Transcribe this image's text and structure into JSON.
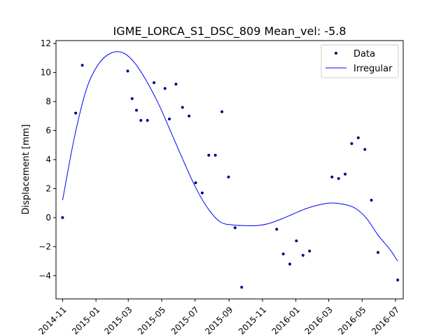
{
  "chart_data": {
    "type": "scatter",
    "title": "IGME_LORCA_S1_DSC_809    Mean_vel: -5.8",
    "xlabel": "",
    "ylabel": "Displacement [mm]",
    "xlim": [
      "2014-10-20",
      "2016-07-15"
    ],
    "ylim": [
      -5.6,
      12.2
    ],
    "grid": false,
    "legend_position": "top-right",
    "x_ticks": [
      "2014-11",
      "2015-01",
      "2015-03",
      "2015-05",
      "2015-07",
      "2015-09",
      "2015-11",
      "2016-01",
      "2016-03",
      "2016-05",
      "2016-07"
    ],
    "y_ticks": [
      -4,
      -2,
      0,
      2,
      4,
      6,
      8,
      10,
      12
    ],
    "series": [
      {
        "name": "Data",
        "kind": "points",
        "color": "#00007f",
        "points": [
          {
            "x": "2014-11-01",
            "y": 0.0
          },
          {
            "x": "2014-11-25",
            "y": 7.2
          },
          {
            "x": "2014-12-07",
            "y": 10.5
          },
          {
            "x": "2015-02-28",
            "y": 10.1
          },
          {
            "x": "2015-03-08",
            "y": 8.2
          },
          {
            "x": "2015-03-16",
            "y": 7.4
          },
          {
            "x": "2015-03-24",
            "y": 6.7
          },
          {
            "x": "2015-04-05",
            "y": 6.7
          },
          {
            "x": "2015-04-17",
            "y": 9.3
          },
          {
            "x": "2015-05-07",
            "y": 8.9
          },
          {
            "x": "2015-05-15",
            "y": 6.8
          },
          {
            "x": "2015-05-27",
            "y": 9.2
          },
          {
            "x": "2015-06-08",
            "y": 7.6
          },
          {
            "x": "2015-06-20",
            "y": 7.0
          },
          {
            "x": "2015-07-02",
            "y": 2.4
          },
          {
            "x": "2015-07-14",
            "y": 1.7
          },
          {
            "x": "2015-07-26",
            "y": 4.3
          },
          {
            "x": "2015-08-07",
            "y": 4.3
          },
          {
            "x": "2015-08-19",
            "y": 7.3
          },
          {
            "x": "2015-08-31",
            "y": 2.8
          },
          {
            "x": "2015-09-12",
            "y": -0.7
          },
          {
            "x": "2015-09-24",
            "y": -4.8
          },
          {
            "x": "2015-11-27",
            "y": -0.8
          },
          {
            "x": "2015-12-09",
            "y": -2.5
          },
          {
            "x": "2015-12-21",
            "y": -3.2
          },
          {
            "x": "2016-01-02",
            "y": -1.6
          },
          {
            "x": "2016-01-14",
            "y": -2.6
          },
          {
            "x": "2016-01-26",
            "y": -2.3
          },
          {
            "x": "2016-03-07",
            "y": 2.8
          },
          {
            "x": "2016-03-19",
            "y": 2.7
          },
          {
            "x": "2016-03-31",
            "y": 3.0
          },
          {
            "x": "2016-04-12",
            "y": 5.1
          },
          {
            "x": "2016-04-24",
            "y": 5.5
          },
          {
            "x": "2016-05-06",
            "y": 4.7
          },
          {
            "x": "2016-05-18",
            "y": 1.2
          },
          {
            "x": "2016-05-30",
            "y": -2.4
          },
          {
            "x": "2016-07-05",
            "y": -4.3
          }
        ]
      },
      {
        "name": "Irregular",
        "kind": "line",
        "color": "#0000ff",
        "points": [
          {
            "x": "2014-11-01",
            "y": 1.2
          },
          {
            "x": "2014-11-23",
            "y": 5.6
          },
          {
            "x": "2014-12-15",
            "y": 8.9
          },
          {
            "x": "2015-01-06",
            "y": 10.6
          },
          {
            "x": "2015-01-29",
            "y": 11.35
          },
          {
            "x": "2015-02-20",
            "y": 11.35
          },
          {
            "x": "2015-03-14",
            "y": 10.6
          },
          {
            "x": "2015-04-05",
            "y": 9.3
          },
          {
            "x": "2015-04-27",
            "y": 7.7
          },
          {
            "x": "2015-05-19",
            "y": 5.8
          },
          {
            "x": "2015-06-11",
            "y": 3.8
          },
          {
            "x": "2015-07-03",
            "y": 2.0
          },
          {
            "x": "2015-07-25",
            "y": 0.6
          },
          {
            "x": "2015-08-16",
            "y": -0.3
          },
          {
            "x": "2015-09-07",
            "y": -0.5
          },
          {
            "x": "2015-09-29",
            "y": -0.55
          },
          {
            "x": "2015-10-22",
            "y": -0.55
          },
          {
            "x": "2015-11-13",
            "y": -0.4
          },
          {
            "x": "2015-12-05",
            "y": -0.1
          },
          {
            "x": "2015-12-27",
            "y": 0.25
          },
          {
            "x": "2016-01-18",
            "y": 0.6
          },
          {
            "x": "2016-02-09",
            "y": 0.85
          },
          {
            "x": "2016-03-02",
            "y": 1.0
          },
          {
            "x": "2016-03-24",
            "y": 0.95
          },
          {
            "x": "2016-04-16",
            "y": 0.7
          },
          {
            "x": "2016-05-08",
            "y": 0.0
          },
          {
            "x": "2016-05-30",
            "y": -1.2
          },
          {
            "x": "2016-06-21",
            "y": -2.2
          },
          {
            "x": "2016-07-05",
            "y": -3.0
          }
        ]
      }
    ]
  }
}
